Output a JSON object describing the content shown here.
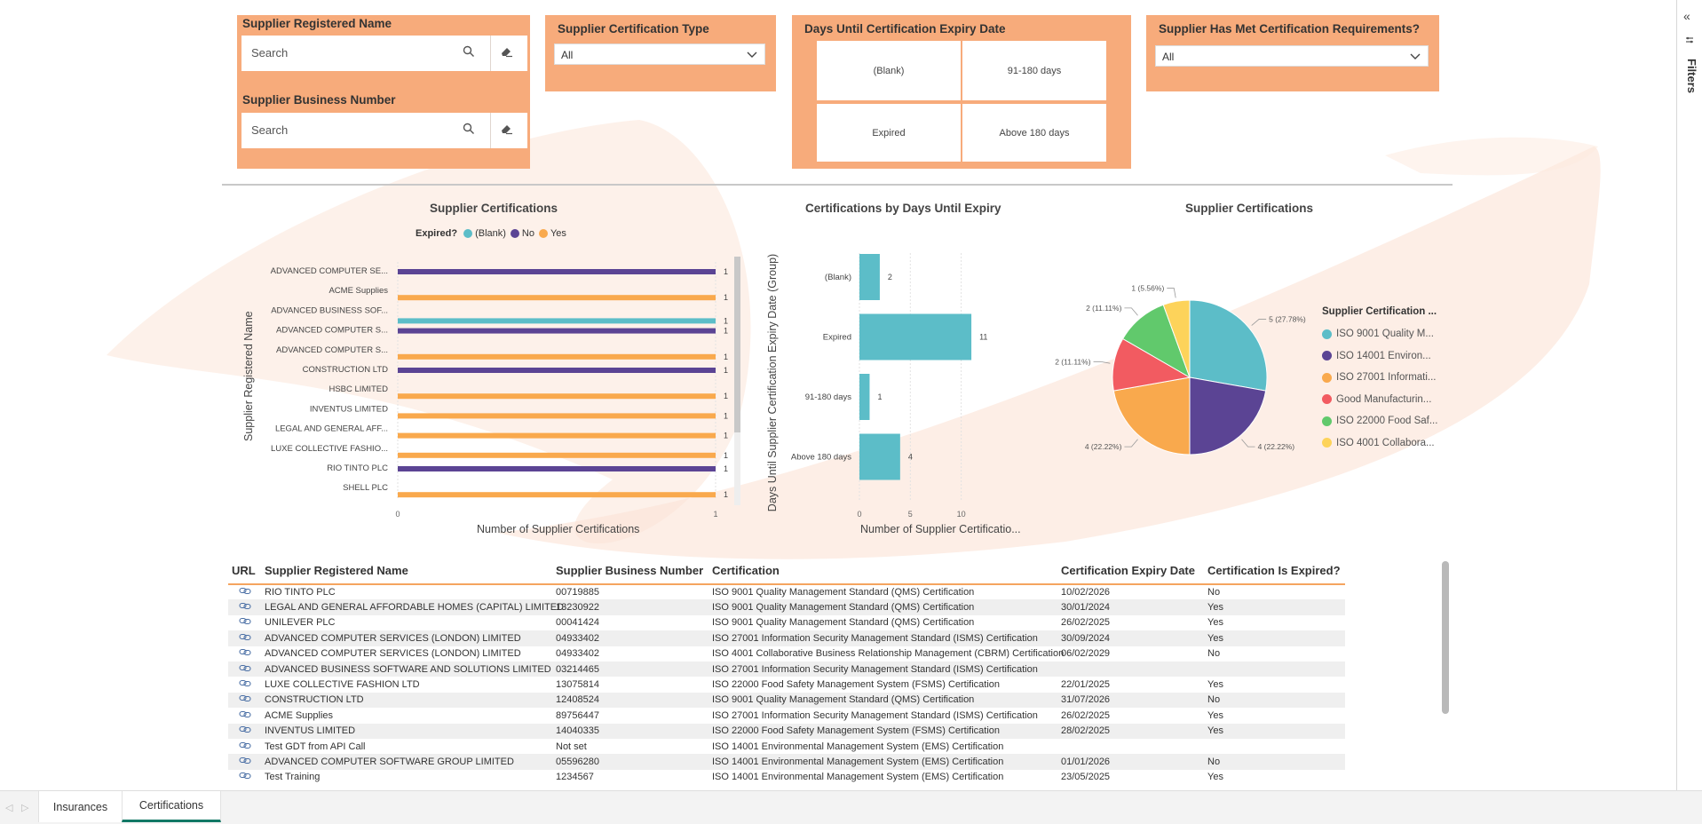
{
  "slicers": {
    "registered_name": {
      "title": "Supplier Registered Name",
      "placeholder": "Search"
    },
    "business_number": {
      "title": "Supplier Business Number",
      "placeholder": "Search"
    },
    "cert_type": {
      "title": "Supplier Certification Type",
      "value": "All"
    },
    "days_until_expiry": {
      "title": "Days Until Certification Expiry Date",
      "tiles": [
        "(Blank)",
        "91-180 days",
        "Expired",
        "Above 180 days"
      ]
    },
    "met_requirements": {
      "title": "Supplier Has Met Certification Requirements?",
      "value": "All"
    }
  },
  "bar_chart": {
    "title": "Supplier Certifications",
    "legend_title": "Expired?",
    "legend_items": [
      "(Blank)",
      "No",
      "Yes"
    ],
    "y_axis_title": "Supplier Registered Name",
    "x_axis_title": "Number of Supplier Certifications"
  },
  "days_chart": {
    "title": "Certifications by Days Until Expiry",
    "y_axis_title": "Days Until Supplier Certification Expiry Date (Group)",
    "x_axis_title": "Number of Supplier Certificatio..."
  },
  "pie_chart": {
    "title": "Supplier Certifications",
    "legend_title": "Supplier Certification ...",
    "legend_items": [
      "ISO 9001 Quality M...",
      "ISO 14001 Environ...",
      "ISO 27001 Informati...",
      "Good Manufacturin...",
      "ISO 22000 Food Saf...",
      "ISO 4001 Collabora..."
    ]
  },
  "chart_data": [
    {
      "type": "bar",
      "orientation": "horizontal",
      "title": "Supplier Certifications",
      "xlabel": "Number of Supplier Certifications",
      "ylabel": "Supplier Registered Name",
      "legend_title": "Expired?",
      "categories": [
        "ADVANCED COMPUTER SE...",
        "ACME Supplies",
        "ADVANCED BUSINESS SOF...",
        "ADVANCED COMPUTER S...",
        "ADVANCED COMPUTER S...",
        "CONSTRUCTION LTD",
        "HSBC LIMITED",
        "INVENTUS LIMITED",
        "LEGAL AND GENERAL AFF...",
        "LUXE COLLECTIVE FASHIO...",
        "RIO TINTO PLC",
        "SHELL PLC"
      ],
      "bars": [
        {
          "category_index": 0,
          "series": "No",
          "value": 1
        },
        {
          "category_index": 1,
          "series": "Yes",
          "value": 1
        },
        {
          "category_index": 2,
          "series": "(Blank)",
          "value": 1
        },
        {
          "category_index": 3,
          "series": "No",
          "value": 1
        },
        {
          "category_index": 4,
          "series": "Yes",
          "value": 1
        },
        {
          "category_index": 5,
          "series": "No",
          "value": 1
        },
        {
          "category_index": 6,
          "series": "Yes",
          "value": 1
        },
        {
          "category_index": 7,
          "series": "Yes",
          "value": 1
        },
        {
          "category_index": 8,
          "series": "Yes",
          "value": 1
        },
        {
          "category_index": 9,
          "series": "Yes",
          "value": 1
        },
        {
          "category_index": 10,
          "series": "No",
          "value": 1
        },
        {
          "category_index": 11,
          "series": "Yes",
          "value": 1
        }
      ],
      "series_colors": {
        "(Blank)": "#5cbdc8",
        "No": "#5b4494",
        "Yes": "#f9a94d"
      },
      "xlim": [
        0,
        1
      ],
      "xticks": [
        "0",
        "1"
      ]
    },
    {
      "type": "bar",
      "orientation": "horizontal",
      "title": "Certifications by Days Until Expiry",
      "xlabel": "Number of Supplier Certificatio...",
      "ylabel": "Days Until Supplier Certification Expiry Date (Group)",
      "categories": [
        "(Blank)",
        "Expired",
        "91-180 days",
        "Above 180 days"
      ],
      "values": [
        2,
        11,
        1,
        4
      ],
      "xlim": [
        0,
        13
      ],
      "xticks": [
        0,
        5,
        10
      ],
      "color": "#5cbdc8"
    },
    {
      "type": "pie",
      "title": "Supplier Certifications",
      "slices": [
        {
          "label": "ISO 9001 Quality M...",
          "value": 5,
          "display": "5 (27.78%)",
          "color": "#5cbdc8"
        },
        {
          "label": "ISO 14001 Environ...",
          "value": 4,
          "display": "4 (22.22%)",
          "color": "#5b4494"
        },
        {
          "label": "ISO 27001 Informati...",
          "value": 4,
          "display": "4 (22.22%)",
          "color": "#f9a94d"
        },
        {
          "label": "Good Manufacturin...",
          "value": 2,
          "display": "2 (11.11%)",
          "color": "#f25b61"
        },
        {
          "label": "ISO 22000 Food Saf...",
          "value": 2,
          "display": "2 (11.11%)",
          "color": "#61c96c"
        },
        {
          "label": "ISO 4001 Collabora...",
          "value": 1,
          "display": "1 (5.56%)",
          "color": "#fdd35a"
        }
      ]
    }
  ],
  "table": {
    "headers": [
      "URL",
      "Supplier Registered Name",
      "Supplier Business Number",
      "Certification",
      "Certification Expiry Date",
      "Certification Is Expired?"
    ],
    "rows": [
      [
        "RIO TINTO PLC",
        "00719885",
        "ISO 9001 Quality Management Standard (QMS) Certification",
        "10/02/2026",
        "No"
      ],
      [
        "LEGAL AND GENERAL AFFORDABLE HOMES (CAPITAL) LIMITED",
        "13230922",
        "ISO 9001 Quality Management Standard (QMS) Certification",
        "30/01/2024",
        "Yes"
      ],
      [
        "UNILEVER PLC",
        "00041424",
        "ISO 9001 Quality Management Standard (QMS) Certification",
        "26/02/2025",
        "Yes"
      ],
      [
        "ADVANCED COMPUTER SERVICES (LONDON) LIMITED",
        "04933402",
        "ISO 27001 Information Security Management Standard (ISMS) Certification",
        "30/09/2024",
        "Yes"
      ],
      [
        "ADVANCED COMPUTER SERVICES (LONDON) LIMITED",
        "04933402",
        "ISO 4001 Collaborative Business Relationship Management (CBRM) Certification",
        "06/02/2029",
        "No"
      ],
      [
        "ADVANCED BUSINESS SOFTWARE AND SOLUTIONS LIMITED",
        "03214465",
        "ISO 27001 Information Security Management Standard (ISMS) Certification",
        "",
        ""
      ],
      [
        "LUXE COLLECTIVE FASHION LTD",
        "13075814",
        "ISO 22000 Food Safety Management System (FSMS) Certification",
        "22/01/2025",
        "Yes"
      ],
      [
        "CONSTRUCTION LTD",
        "12408524",
        "ISO 9001 Quality Management Standard (QMS) Certification",
        "31/07/2026",
        "No"
      ],
      [
        "ACME Supplies",
        "89756447",
        "ISO 27001 Information Security Management Standard (ISMS) Certification",
        "26/02/2025",
        "Yes"
      ],
      [
        "INVENTUS LIMITED",
        "14040335",
        "ISO 22000 Food Safety Management System (FSMS) Certification",
        "28/02/2025",
        "Yes"
      ],
      [
        "Test GDT from API Call",
        "Not set",
        "ISO 14001 Environmental Management System (EMS) Certification",
        "",
        ""
      ],
      [
        "ADVANCED COMPUTER SOFTWARE GROUP LIMITED",
        "05596280",
        "ISO 14001 Environmental Management System (EMS) Certification",
        "01/01/2026",
        "No"
      ],
      [
        "Test Training",
        "1234567",
        "ISO 14001 Environmental Management System (EMS) Certification",
        "23/05/2025",
        "Yes"
      ]
    ]
  },
  "right_pane": {
    "label": "Filters"
  },
  "tabs": [
    "Insurances",
    "Certifications"
  ],
  "colors": {
    "slicer_bg": "#f7ab7b",
    "accent_orange": "#f5a45f",
    "teal": "#5cbdc8",
    "purple": "#5b4494",
    "active_tab": "#117865"
  }
}
